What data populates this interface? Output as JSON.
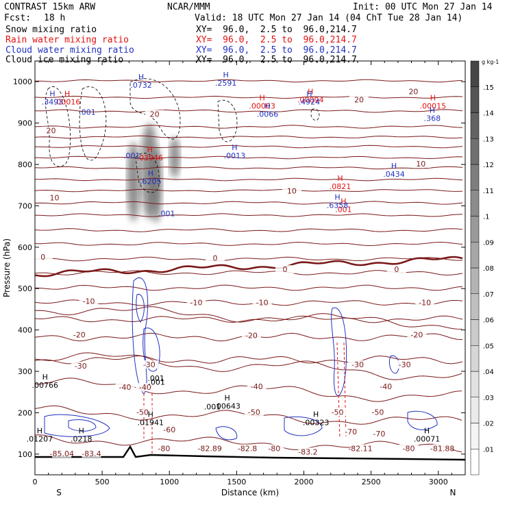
{
  "header": {
    "model": "CONTRAST 15km ARW",
    "org": "NCAR/MMM",
    "init": "Init: 00 UTC Mon 27 Jan 14",
    "fcst_label": "Fcst:",
    "fcst_value": "18 h",
    "valid": "Valid: 18 UTC Mon 27 Jan 14 (04 ChT Tue 28 Jan 14)",
    "fields": [
      {
        "name": "Snow mixing ratio",
        "xy": "XY=  96.0,  2.5 to  96.0,214.7",
        "color": "#000000"
      },
      {
        "name": "Rain water mixing ratio",
        "xy": "XY=  96.0,  2.5 to  96.0,214.7",
        "color": "#e01010"
      },
      {
        "name": "Cloud water mixing ratio",
        "xy": "XY=  96.0,  2.5 to  96.0,214.7",
        "color": "#2030c0"
      },
      {
        "name": "Cloud ice mixing ratio",
        "xy": "XY=  96.0,  2.5 to  96.0,214.7",
        "color": "#000000"
      }
    ]
  },
  "chart_data": {
    "type": "contour-cross-section",
    "xlabel": "Distance (km)",
    "ylabel": "Pressure (hPa)",
    "xlim": [
      0,
      3200
    ],
    "ylim": [
      1050,
      50
    ],
    "x_ticks": [
      0,
      500,
      1000,
      1500,
      2000,
      2500,
      3000
    ],
    "y_ticks": [
      100,
      200,
      300,
      400,
      500,
      600,
      700,
      800,
      900,
      1000
    ],
    "x_end_labels": {
      "left": "S",
      "right": "N"
    },
    "colorbar": {
      "unit": "g kg-1",
      "levels": [
        ".01",
        ".02",
        ".03",
        ".04",
        ".05",
        ".06",
        ".07",
        ".08",
        ".09",
        ".1",
        ".11",
        ".12",
        ".13",
        ".14",
        ".15"
      ],
      "colors": [
        "#ffffff",
        "#f4f4f4",
        "#ebebeb",
        "#e1e1e1",
        "#d6d6d6",
        "#cbcbcb",
        "#bfbfbf",
        "#b3b3b3",
        "#a6a6a6",
        "#999999",
        "#8c8c8c",
        "#7e7e7e",
        "#707070",
        "#626262",
        "#545454",
        "#464646"
      ]
    },
    "temperature_contours": [
      {
        "label": "-85.04",
        "x": 200,
        "p": 100
      },
      {
        "label": "-83.4",
        "x": 420,
        "p": 100
      },
      {
        "label": "-80",
        "x": 960,
        "p": 112
      },
      {
        "label": "-82.89",
        "x": 1300,
        "p": 112
      },
      {
        "label": "-82.8",
        "x": 1580,
        "p": 112
      },
      {
        "label": "-80",
        "x": 1780,
        "p": 112
      },
      {
        "label": "-83.2",
        "x": 2030,
        "p": 104
      },
      {
        "label": "-82.11",
        "x": 2420,
        "p": 112
      },
      {
        "label": "-80",
        "x": 2780,
        "p": 112
      },
      {
        "label": "-81.88",
        "x": 3030,
        "p": 112
      },
      {
        "label": "-70",
        "x": 2350,
        "p": 153
      },
      {
        "label": "-70",
        "x": 2560,
        "p": 148
      },
      {
        "label": "-60",
        "x": 1000,
        "p": 158
      },
      {
        "label": "-50",
        "x": 800,
        "p": 200
      },
      {
        "label": "-50",
        "x": 1630,
        "p": 200
      },
      {
        "label": "-50",
        "x": 2250,
        "p": 200
      },
      {
        "label": "-50",
        "x": 2550,
        "p": 200
      },
      {
        "label": "-40",
        "x": 670,
        "p": 260
      },
      {
        "label": "-40",
        "x": 820,
        "p": 260
      },
      {
        "label": "-40",
        "x": 1650,
        "p": 262
      },
      {
        "label": "-40",
        "x": 2610,
        "p": 262
      },
      {
        "label": "-30",
        "x": 340,
        "p": 312
      },
      {
        "label": "-30",
        "x": 850,
        "p": 315
      },
      {
        "label": "-30",
        "x": 2400,
        "p": 315
      },
      {
        "label": "-30",
        "x": 2750,
        "p": 315
      },
      {
        "label": "-20",
        "x": 330,
        "p": 387
      },
      {
        "label": "-20",
        "x": 1610,
        "p": 385
      },
      {
        "label": "-20",
        "x": 2840,
        "p": 387
      },
      {
        "label": "-10",
        "x": 400,
        "p": 468
      },
      {
        "label": "-10",
        "x": 1200,
        "p": 465
      },
      {
        "label": "-10",
        "x": 1690,
        "p": 465
      },
      {
        "label": "-10",
        "x": 2900,
        "p": 465
      },
      {
        "label": "0",
        "x": 60,
        "p": 575
      },
      {
        "label": "0",
        "x": 1340,
        "p": 572
      },
      {
        "label": "0",
        "x": 1860,
        "p": 545
      },
      {
        "label": "0",
        "x": 2690,
        "p": 545
      },
      {
        "label": "10",
        "x": 145,
        "p": 718
      },
      {
        "label": "10",
        "x": 1910,
        "p": 735
      },
      {
        "label": "10",
        "x": 2870,
        "p": 800
      },
      {
        "label": "20",
        "x": 120,
        "p": 880
      },
      {
        "label": "20",
        "x": 890,
        "p": 920
      },
      {
        "label": "20",
        "x": 2410,
        "p": 955
      },
      {
        "label": "20",
        "x": 2815,
        "p": 975
      }
    ],
    "snow_maxima": [
      {
        "value": ".01207",
        "x": 35,
        "p": 140
      },
      {
        "value": ".0218",
        "x": 345,
        "p": 140
      },
      {
        "value": ".01941",
        "x": 860,
        "p": 180
      },
      {
        "value": ".00643",
        "x": 1430,
        "p": 220
      },
      {
        "value": ".00323",
        "x": 2090,
        "p": 180
      },
      {
        "value": ".00071",
        "x": 2915,
        "p": 140
      },
      {
        "value": ".00766",
        "x": 75,
        "p": 270
      }
    ],
    "snow_contour_labels": [
      {
        "value": ".001",
        "x": 905,
        "p": 268
      },
      {
        "value": ".001",
        "x": 1320,
        "p": 208
      }
    ],
    "rain_maxima": [
      {
        "value": ".03946",
        "x": 855,
        "p": 820
      },
      {
        "value": ".0821",
        "x": 2270,
        "p": 750
      },
      {
        "value": ".00016",
        "x": 240,
        "p": 955
      },
      {
        "value": ".00003",
        "x": 1690,
        "p": 945
      },
      {
        "value": ".00094",
        "x": 2050,
        "p": 960
      },
      {
        "value": ".00015",
        "x": 2960,
        "p": 945
      },
      {
        "value": ".001",
        "x": 2295,
        "p": 695
      }
    ],
    "cloud_water_maxima": [
      {
        "value": ".6205",
        "x": 860,
        "p": 763
      },
      {
        "value": ".6358",
        "x": 2250,
        "p": 705
      },
      {
        "value": ".0434",
        "x": 2670,
        "p": 780
      },
      {
        "value": ".0013",
        "x": 1485,
        "p": 825
      },
      {
        "value": ".3493",
        "x": 130,
        "p": 955
      },
      {
        "value": ".0732",
        "x": 790,
        "p": 995
      },
      {
        "value": ".2591",
        "x": 1420,
        "p": 1000
      },
      {
        "value": ".0066",
        "x": 1730,
        "p": 925
      },
      {
        "value": ".4924",
        "x": 2040,
        "p": 955
      },
      {
        "value": ".368",
        "x": 2955,
        "p": 915
      }
    ],
    "cloud_water_contour_labels": [
      {
        "value": ".001",
        "x": 980,
        "p": 675
      },
      {
        "value": ".001",
        "x": 720,
        "p": 815
      },
      {
        "value": ".001",
        "x": 390,
        "p": 920
      }
    ],
    "ice_maxima": [
      {
        "value": ".001",
        "x": 900,
        "p": 277
      }
    ]
  }
}
